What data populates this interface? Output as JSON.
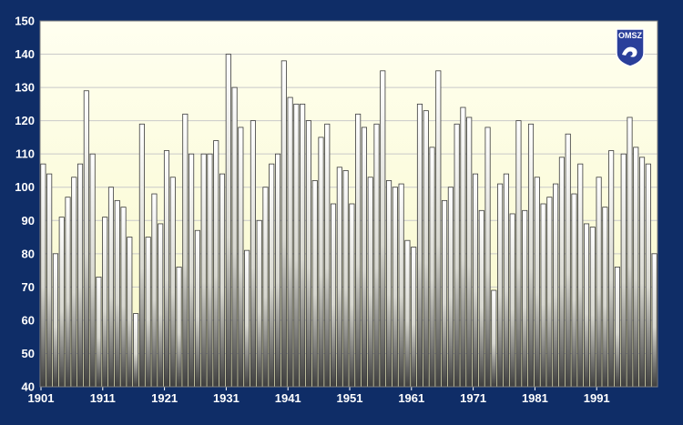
{
  "chart_data": {
    "type": "bar",
    "title": "",
    "xlabel": "",
    "ylabel": "",
    "ylim": [
      40,
      150
    ],
    "yticks": [
      40,
      50,
      60,
      70,
      80,
      90,
      100,
      110,
      120,
      130,
      140,
      150
    ],
    "xtick_labels": [
      "1901",
      "1911",
      "1921",
      "1931",
      "1941",
      "1951",
      "1961",
      "1971",
      "1981",
      "1991"
    ],
    "grid": true,
    "legend": "none",
    "x_start_year": 1901,
    "x": [
      1901,
      1902,
      1903,
      1904,
      1905,
      1906,
      1907,
      1908,
      1909,
      1910,
      1911,
      1912,
      1913,
      1914,
      1915,
      1916,
      1917,
      1918,
      1919,
      1920,
      1921,
      1922,
      1923,
      1924,
      1925,
      1926,
      1927,
      1928,
      1929,
      1930,
      1931,
      1932,
      1933,
      1934,
      1935,
      1936,
      1937,
      1938,
      1939,
      1940,
      1941,
      1942,
      1943,
      1944,
      1945,
      1946,
      1947,
      1948,
      1949,
      1950,
      1951,
      1952,
      1953,
      1954,
      1955,
      1956,
      1957,
      1958,
      1959,
      1960,
      1961,
      1962,
      1963,
      1964,
      1965,
      1966,
      1967,
      1968,
      1969,
      1970,
      1971,
      1972,
      1973,
      1974,
      1975,
      1976,
      1977,
      1978,
      1979,
      1980,
      1981,
      1982,
      1983,
      1984,
      1985,
      1986,
      1987,
      1988,
      1989,
      1990,
      1991,
      1992,
      1993,
      1994,
      1995,
      1996,
      1997,
      1998,
      1999,
      2000
    ],
    "values": [
      107,
      104,
      80,
      91,
      97,
      103,
      107,
      129,
      110,
      73,
      91,
      100,
      96,
      94,
      85,
      62,
      119,
      85,
      98,
      89,
      111,
      103,
      76,
      122,
      110,
      87,
      110,
      110,
      114,
      104,
      140,
      130,
      118,
      81,
      120,
      90,
      100,
      107,
      110,
      138,
      127,
      125,
      125,
      120,
      102,
      115,
      119,
      95,
      106,
      105,
      95,
      122,
      118,
      103,
      119,
      135,
      102,
      100,
      101,
      84,
      82,
      125,
      123,
      112,
      135,
      96,
      100,
      119,
      124,
      121,
      104,
      93,
      118,
      69,
      101,
      104,
      92,
      120,
      93,
      119,
      103,
      95,
      97,
      101,
      109,
      116,
      98,
      107,
      89,
      88,
      103,
      94,
      111,
      76,
      110,
      121,
      112,
      109,
      107,
      80
    ],
    "colors": {
      "background": "#0f2d67",
      "plot_top": "#fffff0",
      "plot_bottom": "#f8f8c8",
      "bar_light": "#ffffff",
      "bar_dark": "#3f3f3f",
      "grid": "#c9c9c9"
    }
  },
  "logo": {
    "text": "OMSZ",
    "icon": "omsz-logo-icon"
  }
}
